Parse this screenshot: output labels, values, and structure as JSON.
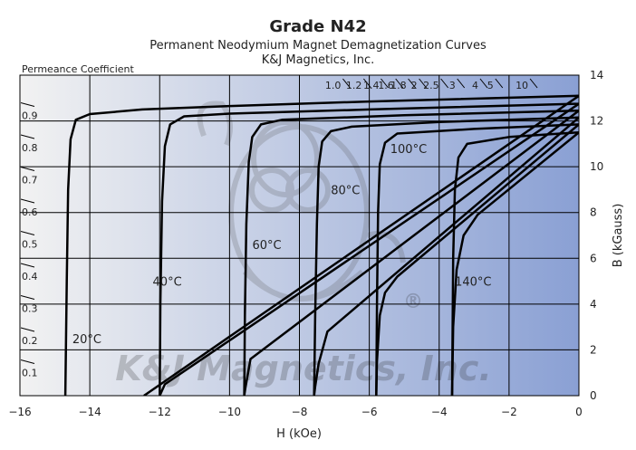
{
  "chart_data": {
    "type": "line",
    "title": "Grade N42",
    "subtitle": "Permanent Neodymium Magnet Demagnetization Curves",
    "credit": "K&J Magnetics, Inc.",
    "xlabel": "H (kOe)",
    "ylabel": "B (kGauss)",
    "left_axis_label": "Permeance Coefficient",
    "xlim": [
      -16,
      0
    ],
    "ylim": [
      0,
      14
    ],
    "x_ticks": [
      -16,
      -14,
      -12,
      -10,
      -8,
      -6,
      -4,
      -2,
      0
    ],
    "y_ticks": [
      0,
      2,
      4,
      6,
      8,
      10,
      12,
      14
    ],
    "grid": true,
    "background_gradient": [
      "#f2f2f2",
      "#8aa0d4"
    ],
    "line_color": "#000000",
    "permeance_top": [
      {
        "label": "1.0",
        "value": 1.0
      },
      {
        "label": "1.2",
        "value": 1.2
      },
      {
        "label": "1.4",
        "value": 1.4
      },
      {
        "label": "1.6",
        "value": 1.6
      },
      {
        "label": "1.8",
        "value": 1.8
      },
      {
        "label": "2",
        "value": 2
      },
      {
        "label": "2.5",
        "value": 2.5
      },
      {
        "label": "3",
        "value": 3
      },
      {
        "label": "4",
        "value": 4
      },
      {
        "label": "5",
        "value": 5
      },
      {
        "label": "10",
        "value": 10
      }
    ],
    "permeance_left": [
      {
        "label": "0.9",
        "value": 0.9
      },
      {
        "label": "0.8",
        "value": 0.8
      },
      {
        "label": "0.7",
        "value": 0.7
      },
      {
        "label": "0.6",
        "value": 0.6
      },
      {
        "label": "0.5",
        "value": 0.5
      },
      {
        "label": "0.4",
        "value": 0.4
      },
      {
        "label": "0.3",
        "value": 0.3
      },
      {
        "label": "0.2",
        "value": 0.2
      },
      {
        "label": "0.1",
        "value": 0.1
      }
    ],
    "series": [
      {
        "name": "20°C",
        "j_curve": [
          [
            0,
            13.1
          ],
          [
            -6,
            12.85
          ],
          [
            -10,
            12.65
          ],
          [
            -12.5,
            12.5
          ],
          [
            -14,
            12.3
          ],
          [
            -14.4,
            12.05
          ],
          [
            -14.55,
            11.2
          ],
          [
            -14.62,
            9.0
          ],
          [
            -14.66,
            5.0
          ],
          [
            -14.7,
            0
          ]
        ],
        "b_line": [
          [
            0,
            13.1
          ],
          [
            -12.45,
            0
          ]
        ],
        "label_at": [
          -14.5,
          2.3
        ]
      },
      {
        "name": "40°C",
        "j_curve": [
          [
            0,
            12.75
          ],
          [
            -6,
            12.5
          ],
          [
            -10,
            12.32
          ],
          [
            -11.3,
            12.2
          ],
          [
            -11.7,
            11.85
          ],
          [
            -11.85,
            10.9
          ],
          [
            -11.93,
            8.5
          ],
          [
            -11.98,
            4.0
          ],
          [
            -12.0,
            0
          ]
        ],
        "b_line": [
          [
            0,
            12.75
          ],
          [
            -11.85,
            0.5
          ],
          [
            -12.0,
            0
          ]
        ],
        "label_at": [
          -12.2,
          4.8
        ]
      },
      {
        "name": "60°C",
        "j_curve": [
          [
            0,
            12.45
          ],
          [
            -5,
            12.25
          ],
          [
            -8.5,
            12.05
          ],
          [
            -9.1,
            11.85
          ],
          [
            -9.35,
            11.3
          ],
          [
            -9.45,
            10.2
          ],
          [
            -9.52,
            7.5
          ],
          [
            -9.56,
            3.5
          ],
          [
            -9.58,
            0
          ]
        ],
        "b_line": [
          [
            0,
            12.45
          ],
          [
            -9.4,
            1.6
          ],
          [
            -9.55,
            0.3
          ],
          [
            -9.58,
            0
          ]
        ],
        "label_at": [
          -9.35,
          6.4
        ]
      },
      {
        "name": "80°C",
        "j_curve": [
          [
            0,
            12.15
          ],
          [
            -4,
            11.95
          ],
          [
            -6.5,
            11.75
          ],
          [
            -7.1,
            11.55
          ],
          [
            -7.35,
            11.1
          ],
          [
            -7.45,
            10.0
          ],
          [
            -7.5,
            7.5
          ],
          [
            -7.55,
            3.5
          ],
          [
            -7.58,
            0
          ]
        ],
        "b_line": [
          [
            0,
            12.15
          ],
          [
            -7.2,
            2.8
          ],
          [
            -7.45,
            1.4
          ],
          [
            -7.55,
            0.4
          ],
          [
            -7.58,
            0
          ]
        ],
        "label_at": [
          -7.1,
          8.8
        ]
      },
      {
        "name": "100°C",
        "j_curve": [
          [
            0,
            11.85
          ],
          [
            -3,
            11.65
          ],
          [
            -5.2,
            11.45
          ],
          [
            -5.55,
            11.05
          ],
          [
            -5.7,
            10.1
          ],
          [
            -5.75,
            8.0
          ],
          [
            -5.78,
            4.0
          ],
          [
            -5.8,
            0
          ]
        ],
        "b_line": [
          [
            0,
            11.85
          ],
          [
            -5.2,
            5.2
          ],
          [
            -5.55,
            4.5
          ],
          [
            -5.7,
            3.5
          ],
          [
            -5.78,
            1.5
          ],
          [
            -5.8,
            0
          ]
        ],
        "label_at": [
          -5.4,
          10.6
        ]
      },
      {
        "name": "140°C",
        "j_curve": [
          [
            0,
            11.5
          ],
          [
            -2,
            11.3
          ],
          [
            -3.2,
            11.0
          ],
          [
            -3.45,
            10.4
          ],
          [
            -3.55,
            9.0
          ],
          [
            -3.6,
            6.0
          ],
          [
            -3.62,
            2.0
          ],
          [
            -3.63,
            0
          ]
        ],
        "b_line": [
          [
            0,
            11.5
          ],
          [
            -2.9,
            7.9
          ],
          [
            -3.3,
            7.0
          ],
          [
            -3.5,
            5.5
          ],
          [
            -3.6,
            3.0
          ],
          [
            -3.63,
            0
          ]
        ],
        "label_at": [
          -3.55,
          4.8
        ]
      }
    ],
    "watermark": "K&J Magnetics, Inc.",
    "watermark_mark": "®"
  }
}
